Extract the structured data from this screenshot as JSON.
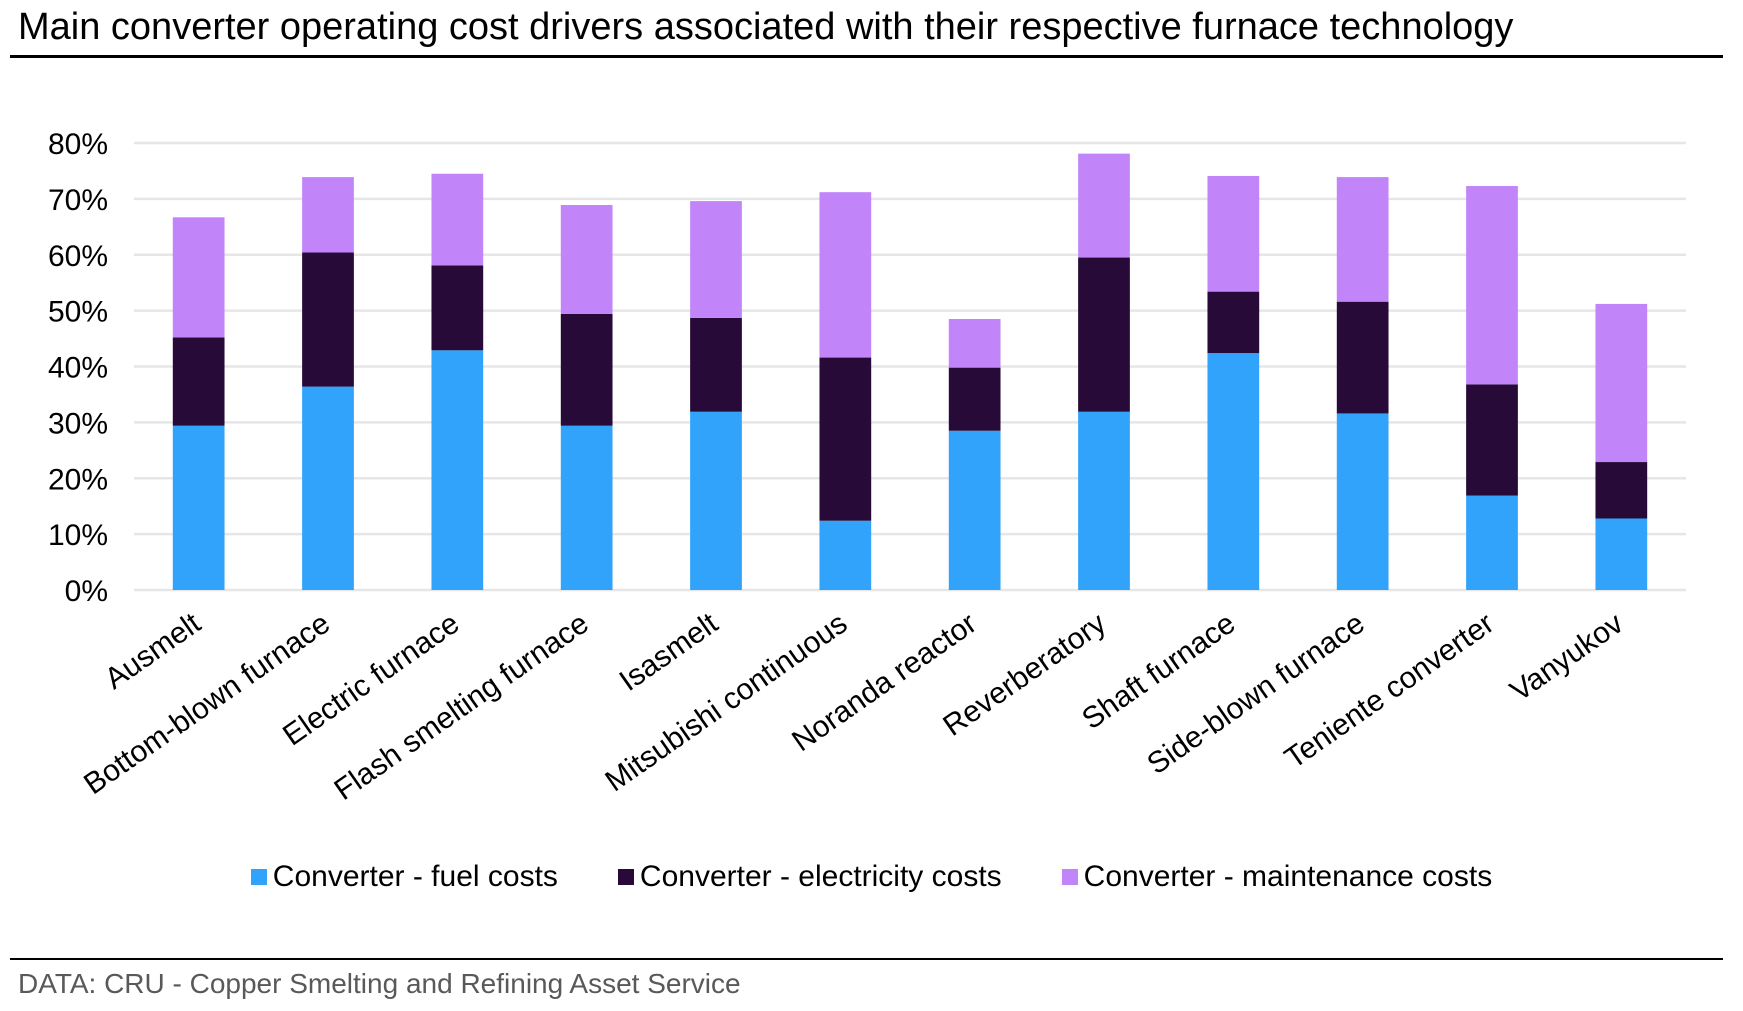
{
  "title": "Main converter operating cost drivers associated with their respective furnace technology",
  "source": "DATA: CRU - Copper Smelting and Refining Asset Service",
  "chart_data": {
    "type": "bar",
    "stacked": true,
    "title": "Main converter operating cost drivers associated with their respective furnace technology",
    "xlabel": "",
    "ylabel": "",
    "ylim": [
      0,
      80
    ],
    "yticks": [
      0,
      10,
      20,
      30,
      40,
      50,
      60,
      70,
      80
    ],
    "ytick_labels": [
      "0%",
      "10%",
      "20%",
      "30%",
      "40%",
      "50%",
      "60%",
      "70%",
      "80%"
    ],
    "grid": true,
    "legend_position": "bottom",
    "categories": [
      "Ausmelt",
      "Bottom-blown furnace",
      "Electric furnace",
      "Flash smelting furnace",
      "Isasmelt",
      "Mitsubishi continuous",
      "Noranda reactor",
      "Reverberatory",
      "Shaft furnace",
      "Side-blown furnace",
      "Teniente converter",
      "Vanyukov"
    ],
    "series": [
      {
        "name": "Converter - fuel costs",
        "color": "#31A3FB",
        "values": [
          29.4,
          36.4,
          42.9,
          29.4,
          31.9,
          12.4,
          28.5,
          31.9,
          42.4,
          31.6,
          16.9,
          12.8
        ]
      },
      {
        "name": "Converter - electricity costs",
        "color": "#270A37",
        "values": [
          15.8,
          24.0,
          15.2,
          20.0,
          16.8,
          29.2,
          11.3,
          27.6,
          11.0,
          20.0,
          19.9,
          10.1
        ]
      },
      {
        "name": "Converter - maintenance costs",
        "color": "#C185F9",
        "values": [
          21.5,
          13.5,
          16.4,
          19.5,
          20.9,
          29.6,
          8.7,
          18.6,
          20.7,
          22.3,
          35.5,
          28.3
        ]
      }
    ]
  }
}
